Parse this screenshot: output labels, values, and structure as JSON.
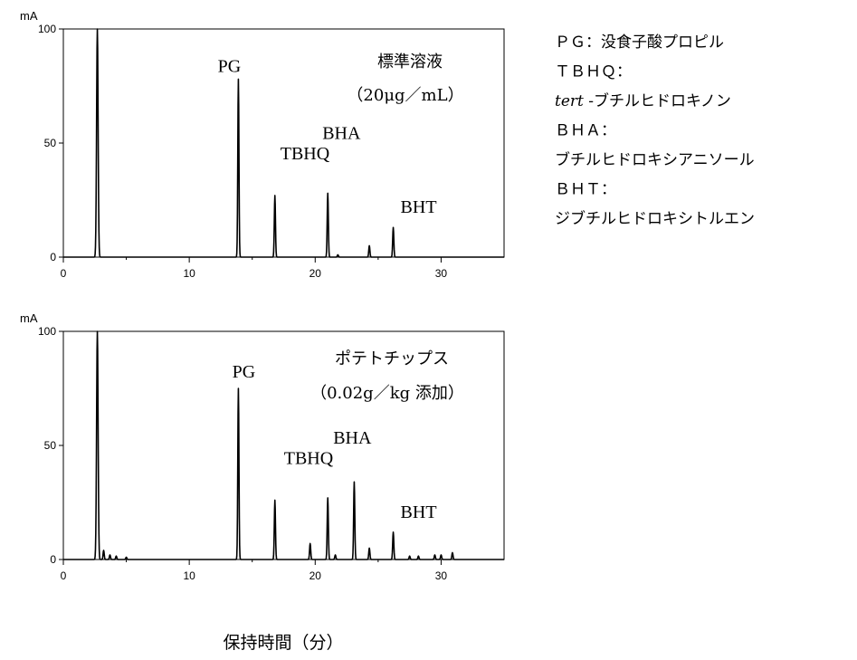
{
  "x_axis_title": "保持時間（分）",
  "legend": [
    {
      "text": "ＰＧ：没食子酸プロピル"
    },
    {
      "text": "ＴＢＨＱ："
    },
    {
      "italic": "tert",
      "text": " -ブチルヒドロキノン"
    },
    {
      "text": "ＢＨＡ："
    },
    {
      "text": "ブチルヒドロキシアニソール"
    },
    {
      "text": "ＢＨＴ："
    },
    {
      "text": "ジブチルヒドロキシトルエン"
    }
  ],
  "chart_data": [
    {
      "type": "line",
      "title": "標準溶液",
      "subtitle": "（20μg／mL）",
      "ylabel": "mA",
      "xlim": [
        0,
        35
      ],
      "ylim": [
        0,
        100
      ],
      "xticks": [
        0,
        10,
        20,
        30
      ],
      "yticks": [
        0,
        50,
        100
      ],
      "baseline": 0,
      "peaks": [
        {
          "x": 2.7,
          "y": 100,
          "label": ""
        },
        {
          "x": 13.9,
          "y": 78,
          "label": "PG"
        },
        {
          "x": 16.8,
          "y": 27,
          "label": "TBHQ"
        },
        {
          "x": 21.0,
          "y": 28,
          "label": "BHA"
        },
        {
          "x": 21.8,
          "y": 1,
          "label": ""
        },
        {
          "x": 24.3,
          "y": 5,
          "label": ""
        },
        {
          "x": 26.2,
          "y": 13,
          "label": "BHT"
        }
      ]
    },
    {
      "type": "line",
      "title": "ポテトチップス",
      "subtitle": "（0.02g／kg 添加）",
      "ylabel": "mA",
      "xlim": [
        0,
        35
      ],
      "ylim": [
        0,
        100
      ],
      "xticks": [
        0,
        10,
        20,
        30
      ],
      "yticks": [
        0,
        50,
        100
      ],
      "baseline": 0,
      "peaks": [
        {
          "x": 2.7,
          "y": 100,
          "label": ""
        },
        {
          "x": 3.2,
          "y": 4,
          "label": ""
        },
        {
          "x": 3.7,
          "y": 2,
          "label": ""
        },
        {
          "x": 4.2,
          "y": 1.5,
          "label": ""
        },
        {
          "x": 5.0,
          "y": 1,
          "label": ""
        },
        {
          "x": 13.9,
          "y": 75,
          "label": "PG"
        },
        {
          "x": 16.8,
          "y": 26,
          "label": "TBHQ"
        },
        {
          "x": 19.6,
          "y": 7,
          "label": ""
        },
        {
          "x": 21.0,
          "y": 27,
          "label": "BHA"
        },
        {
          "x": 21.6,
          "y": 2,
          "label": ""
        },
        {
          "x": 23.1,
          "y": 34,
          "label": ""
        },
        {
          "x": 24.3,
          "y": 5,
          "label": ""
        },
        {
          "x": 26.2,
          "y": 12,
          "label": "BHT"
        },
        {
          "x": 27.5,
          "y": 1.5,
          "label": ""
        },
        {
          "x": 28.2,
          "y": 1.5,
          "label": ""
        },
        {
          "x": 29.5,
          "y": 2,
          "label": ""
        },
        {
          "x": 30.0,
          "y": 2,
          "label": ""
        },
        {
          "x": 30.9,
          "y": 3,
          "label": ""
        }
      ]
    }
  ]
}
